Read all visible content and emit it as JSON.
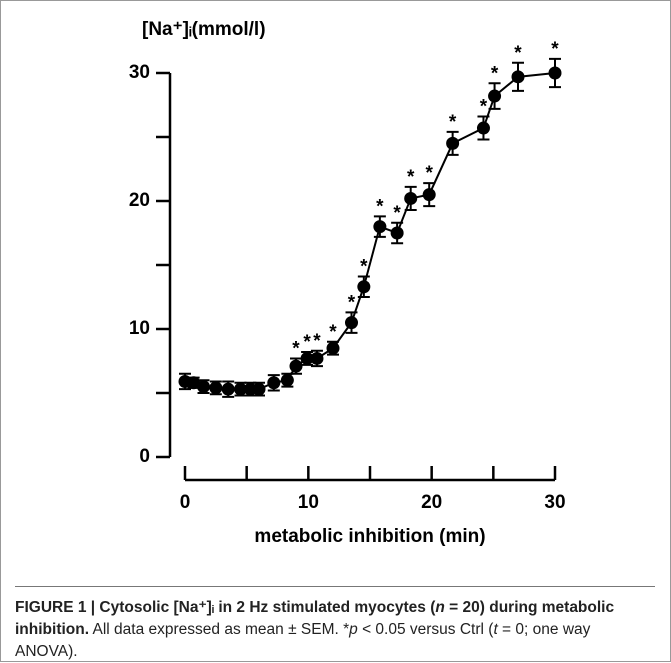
{
  "chart_data": {
    "type": "line",
    "ylabel": "[Na⁺]ᵢ(mmol/l)",
    "xlabel": "metabolic inhibition (min)",
    "x": [
      0,
      0.7,
      1.5,
      2.5,
      3.5,
      4.5,
      5.3,
      6,
      7.2,
      8.3,
      9,
      9.9,
      10.7,
      12,
      13.5,
      14.5,
      15.8,
      17.2,
      18.3,
      19.8,
      21.7,
      24.2,
      25.1,
      27,
      30
    ],
    "values": [
      5.9,
      5.8,
      5.5,
      5.4,
      5.3,
      5.3,
      5.3,
      5.3,
      5.8,
      6.0,
      7.1,
      7.7,
      7.7,
      8.5,
      10.5,
      13.3,
      18.0,
      17.5,
      20.2,
      20.5,
      24.5,
      25.7,
      28.2,
      29.7,
      30.0
    ],
    "errors": [
      0.6,
      0.4,
      0.5,
      0.5,
      0.6,
      0.5,
      0.5,
      0.5,
      0.6,
      0.5,
      0.6,
      0.5,
      0.6,
      0.5,
      0.8,
      0.8,
      0.8,
      0.8,
      0.9,
      0.9,
      0.9,
      0.9,
      1.0,
      1.1,
      1.1
    ],
    "significance": [
      null,
      null,
      null,
      null,
      null,
      null,
      null,
      null,
      null,
      null,
      "*",
      "*",
      "*",
      "*",
      "*",
      "*",
      "*",
      "*",
      "*",
      "*",
      "*",
      "*",
      "*",
      "*",
      "*"
    ],
    "color": "#000000",
    "xlim": [
      0,
      30
    ],
    "xticks": [
      0,
      10,
      20,
      30
    ],
    "minor_xticks": [
      5,
      15,
      25
    ],
    "ylim": [
      0,
      30
    ],
    "yticks": [
      0,
      10,
      20,
      30
    ],
    "minor_yticks": [
      5,
      15,
      25
    ]
  },
  "caption": {
    "title": [
      "FIGURE 1 | Cytosolic [Na⁺]ᵢ in 2 Hz stimulated myocytes (",
      "n",
      " = 20) during metabolic inhibition."
    ],
    "body": [
      " All data expressed as mean ± SEM. *",
      "p",
      " < 0.05 versus Ctrl (",
      "t",
      " = 0; one way ANOVA)."
    ]
  }
}
